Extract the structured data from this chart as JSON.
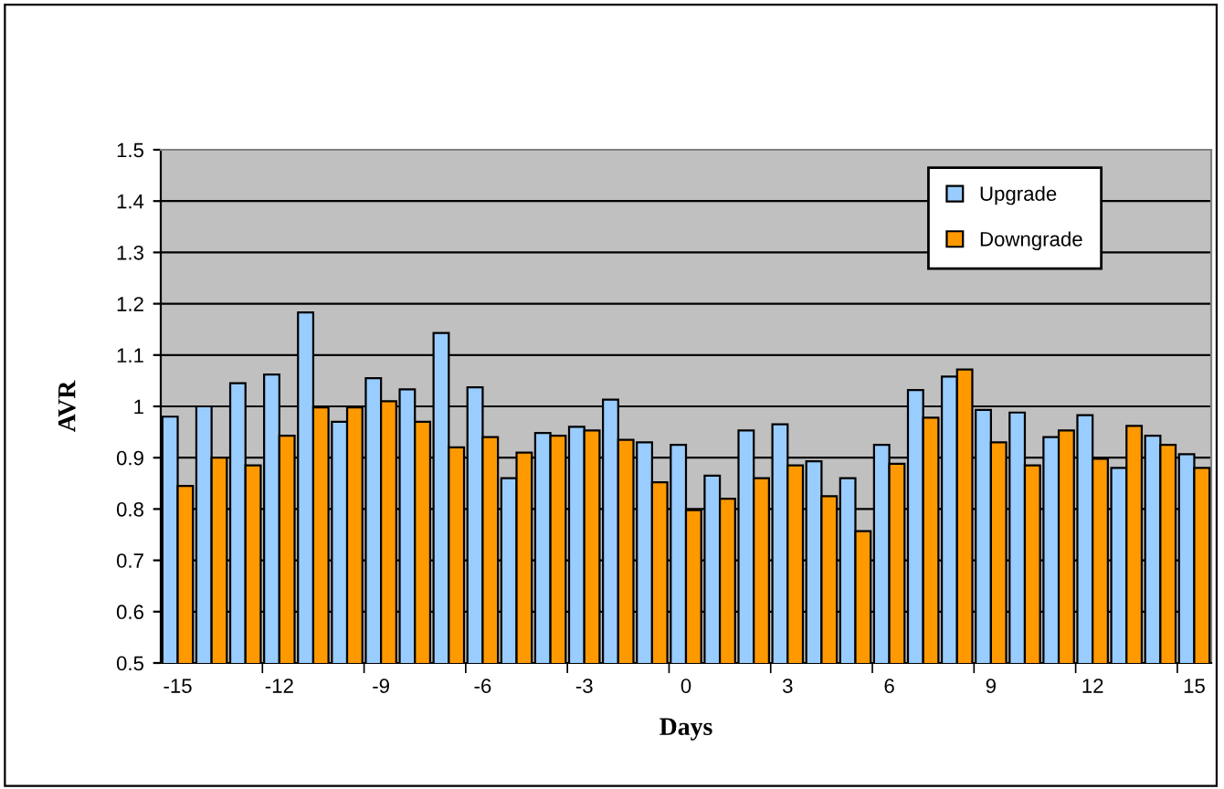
{
  "chart_data": {
    "type": "bar",
    "xlabel": "Days",
    "ylabel": "AVR",
    "categories": [
      "-15",
      null,
      null,
      "-12",
      null,
      null,
      "-9",
      null,
      null,
      "-6",
      null,
      null,
      "-3",
      null,
      null,
      "0",
      null,
      null,
      "3",
      null,
      null,
      "6",
      null,
      null,
      "9",
      null,
      null,
      "12",
      null,
      null,
      "15"
    ],
    "series": [
      {
        "name": "Upgrade",
        "color": "#99ccff",
        "values": [
          0.98,
          1.0,
          1.045,
          1.062,
          1.183,
          0.97,
          1.055,
          1.033,
          1.143,
          1.037,
          0.86,
          0.948,
          0.96,
          1.013,
          0.93,
          0.925,
          0.865,
          0.953,
          0.965,
          0.893,
          0.86,
          0.925,
          1.032,
          1.058,
          0.993,
          0.988,
          0.94,
          0.983,
          0.88,
          0.943,
          0.907
        ]
      },
      {
        "name": "Downgrade",
        "color": "#ff9900",
        "values": [
          0.845,
          0.9,
          0.885,
          0.943,
          0.998,
          0.998,
          1.01,
          0.97,
          0.92,
          0.94,
          0.91,
          0.943,
          0.953,
          0.935,
          0.852,
          0.798,
          0.82,
          0.86,
          0.885,
          0.825,
          0.757,
          0.888,
          0.978,
          1.072,
          0.93,
          0.885,
          0.953,
          0.898,
          0.962,
          0.925,
          0.88
        ]
      }
    ],
    "ylim": [
      0.5,
      1.5
    ],
    "yticks": [
      0.5,
      0.6,
      0.7,
      0.8,
      0.9,
      1,
      1.1,
      1.2,
      1.3,
      1.4,
      1.5
    ],
    "grid": "y",
    "legend": "top right"
  }
}
